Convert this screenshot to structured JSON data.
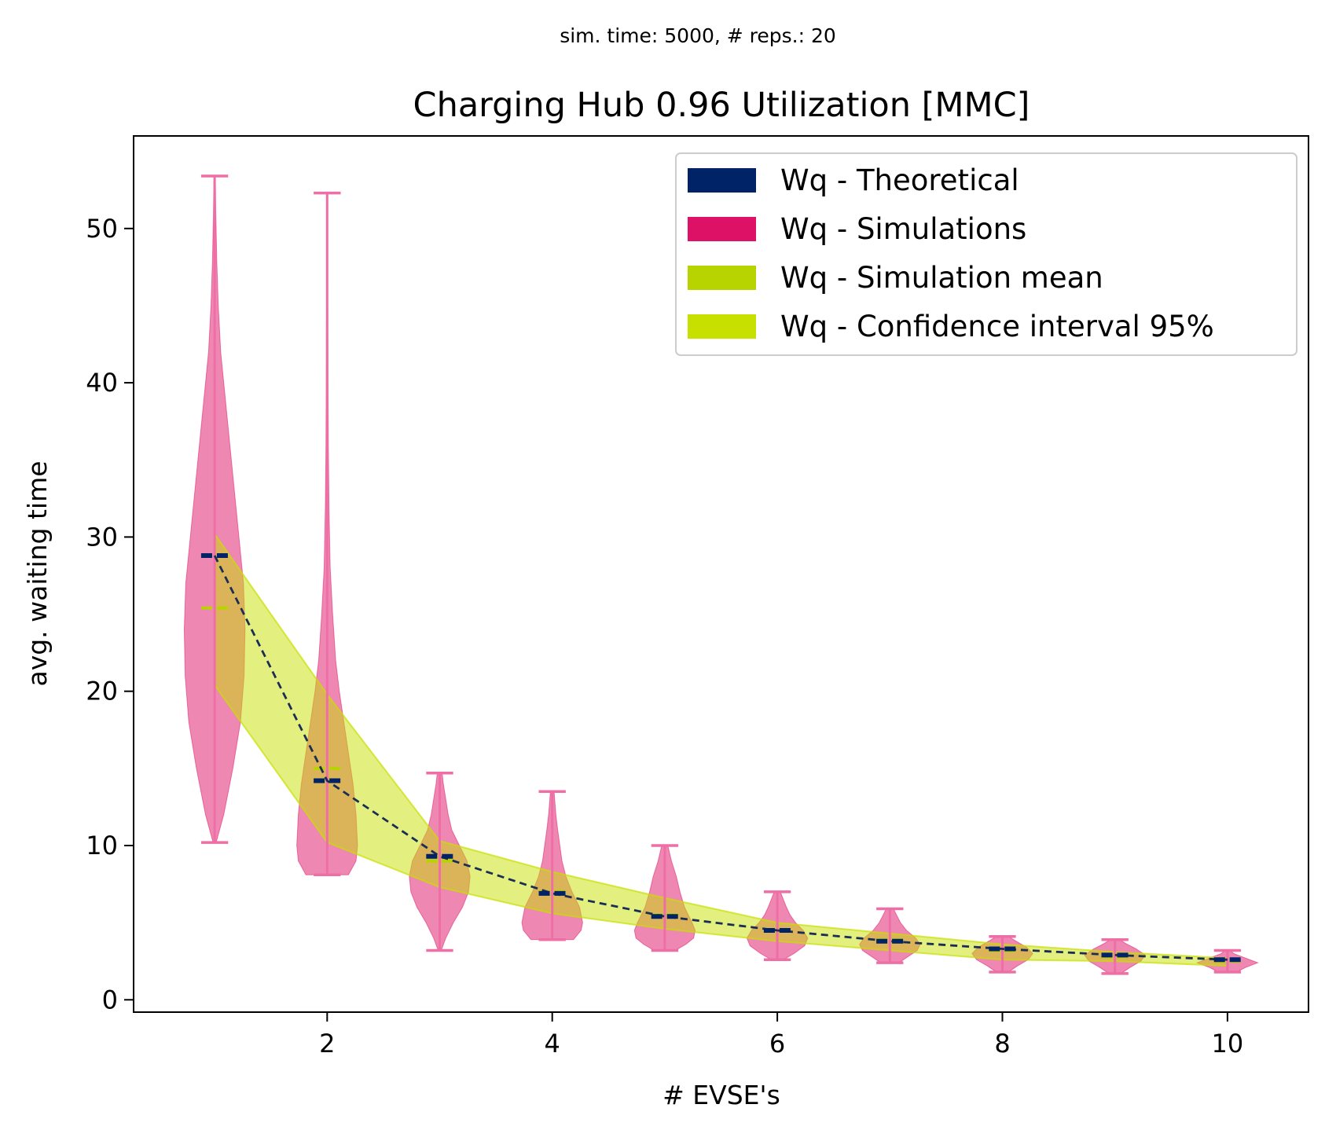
{
  "suptitle": "sim. time: 5000, # reps.: 20",
  "chart_data": {
    "type": "violin",
    "title": "Charging Hub 0.96 Utilization [MMC]",
    "xlabel": "# EVSE's",
    "ylabel": "avg. waiting time",
    "xlim": [
      0.28,
      10.72
    ],
    "ylim": [
      -0.8,
      56
    ],
    "xticks": [
      2,
      4,
      6,
      8,
      10
    ],
    "yticks": [
      0,
      10,
      20,
      30,
      40,
      50
    ],
    "x": [
      1,
      2,
      3,
      4,
      5,
      6,
      7,
      8,
      9,
      10
    ],
    "series": [
      {
        "name": "Wq - Theoretical",
        "color": "#002266",
        "values": [
          28.8,
          14.2,
          9.3,
          6.9,
          5.4,
          4.5,
          3.8,
          3.3,
          2.9,
          2.6
        ]
      },
      {
        "name": "Wq - Simulations",
        "color": "#dd1166",
        "min": [
          10.2,
          8.1,
          3.2,
          3.9,
          3.2,
          2.6,
          2.4,
          1.8,
          1.7,
          1.8
        ],
        "max": [
          53.4,
          52.3,
          14.7,
          13.5,
          10.0,
          7.0,
          5.9,
          4.1,
          3.9,
          3.2
        ],
        "density": [
          [
            [
              10.2,
              0.05
            ],
            [
              12,
              0.3
            ],
            [
              15,
              0.6
            ],
            [
              18,
              0.85
            ],
            [
              21,
              0.97
            ],
            [
              24,
              1.0
            ],
            [
              27,
              0.95
            ],
            [
              30,
              0.8
            ],
            [
              33,
              0.65
            ],
            [
              36,
              0.5
            ],
            [
              39,
              0.35
            ],
            [
              42,
              0.2
            ],
            [
              45,
              0.12
            ],
            [
              48,
              0.07
            ],
            [
              51,
              0.04
            ],
            [
              53.4,
              0.02
            ]
          ],
          [
            [
              8.1,
              0.7
            ],
            [
              9,
              0.95
            ],
            [
              10,
              1.0
            ],
            [
              12,
              0.95
            ],
            [
              14,
              0.85
            ],
            [
              16,
              0.7
            ],
            [
              18,
              0.55
            ],
            [
              20,
              0.4
            ],
            [
              22,
              0.28
            ],
            [
              25,
              0.18
            ],
            [
              28,
              0.1
            ],
            [
              32,
              0.06
            ],
            [
              36,
              0.04
            ],
            [
              40,
              0.03
            ],
            [
              45,
              0.02
            ],
            [
              52.3,
              0.01
            ]
          ],
          [
            [
              3.2,
              0.05
            ],
            [
              4,
              0.2
            ],
            [
              5,
              0.45
            ],
            [
              6,
              0.75
            ],
            [
              7,
              0.95
            ],
            [
              8,
              1.0
            ],
            [
              9,
              0.9
            ],
            [
              10,
              0.65
            ],
            [
              11,
              0.4
            ],
            [
              12,
              0.28
            ],
            [
              13,
              0.2
            ],
            [
              14,
              0.12
            ],
            [
              14.7,
              0.08
            ]
          ],
          [
            [
              3.9,
              0.7
            ],
            [
              4.5,
              0.95
            ],
            [
              5,
              1.0
            ],
            [
              6,
              0.9
            ],
            [
              7,
              0.65
            ],
            [
              8,
              0.45
            ],
            [
              9,
              0.32
            ],
            [
              10,
              0.25
            ],
            [
              11,
              0.18
            ],
            [
              12,
              0.12
            ],
            [
              13,
              0.08
            ],
            [
              13.5,
              0.06
            ]
          ],
          [
            [
              3.2,
              0.35
            ],
            [
              3.6,
              0.7
            ],
            [
              4,
              0.95
            ],
            [
              4.5,
              1.0
            ],
            [
              5,
              0.9
            ],
            [
              6,
              0.65
            ],
            [
              7,
              0.5
            ],
            [
              8,
              0.38
            ],
            [
              9,
              0.22
            ],
            [
              10,
              0.1
            ]
          ],
          [
            [
              2.6,
              0.2
            ],
            [
              3,
              0.55
            ],
            [
              3.5,
              0.9
            ],
            [
              4,
              1.0
            ],
            [
              4.5,
              0.85
            ],
            [
              5,
              0.6
            ],
            [
              5.5,
              0.42
            ],
            [
              6,
              0.3
            ],
            [
              6.5,
              0.2
            ],
            [
              7,
              0.1
            ]
          ],
          [
            [
              2.4,
              0.3
            ],
            [
              2.8,
              0.6
            ],
            [
              3.2,
              0.9
            ],
            [
              3.6,
              1.0
            ],
            [
              4,
              0.85
            ],
            [
              4.5,
              0.55
            ],
            [
              5,
              0.35
            ],
            [
              5.5,
              0.22
            ],
            [
              5.9,
              0.12
            ]
          ],
          [
            [
              1.8,
              0.2
            ],
            [
              2.2,
              0.5
            ],
            [
              2.6,
              0.85
            ],
            [
              3.0,
              1.0
            ],
            [
              3.4,
              0.8
            ],
            [
              3.8,
              0.45
            ],
            [
              4.1,
              0.2
            ]
          ],
          [
            [
              1.7,
              0.2
            ],
            [
              2.1,
              0.5
            ],
            [
              2.5,
              0.85
            ],
            [
              2.9,
              1.0
            ],
            [
              3.3,
              0.7
            ],
            [
              3.6,
              0.4
            ],
            [
              3.9,
              0.15
            ]
          ],
          [
            [
              1.8,
              0.3
            ],
            [
              2.1,
              0.6
            ],
            [
              2.4,
              1.0
            ],
            [
              2.7,
              0.6
            ],
            [
              3.0,
              0.2
            ],
            [
              3.2,
              0.1
            ]
          ]
        ]
      },
      {
        "name": "Wq - Simulation mean",
        "color": "#b8d400",
        "values": [
          25.4,
          15.0,
          9.0,
          7.0,
          5.5,
          4.5,
          3.9,
          3.2,
          2.8,
          2.5
        ]
      },
      {
        "name": "Wq - Confidence interval 95%",
        "color": "#c8e000",
        "lower": [
          20.4,
          10.2,
          7.3,
          5.6,
          4.6,
          3.8,
          3.2,
          2.6,
          2.5,
          2.2
        ],
        "upper": [
          30.2,
          19.8,
          10.3,
          8.3,
          6.6,
          5.0,
          4.3,
          3.6,
          3.1,
          2.7
        ]
      }
    ],
    "legend": {
      "position": "upper-right"
    },
    "grid": false
  }
}
